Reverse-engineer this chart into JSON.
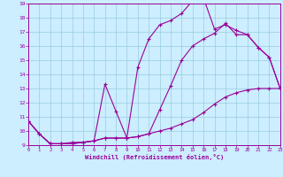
{
  "xlabel": "Windchill (Refroidissement éolien,°C)",
  "background_color": "#cceeff",
  "grid_color": "#99ccdd",
  "line_color": "#990099",
  "xlim": [
    0,
    23
  ],
  "ylim": [
    9,
    19
  ],
  "xtick_vals": [
    0,
    1,
    2,
    3,
    4,
    5,
    6,
    7,
    8,
    9,
    10,
    11,
    12,
    13,
    14,
    15,
    16,
    17,
    18,
    19,
    20,
    21,
    22,
    23
  ],
  "ytick_vals": [
    9,
    10,
    11,
    12,
    13,
    14,
    15,
    16,
    17,
    18,
    19
  ],
  "curve1_x": [
    0,
    1,
    2,
    3,
    4,
    5,
    6,
    7,
    8,
    9,
    10,
    11,
    12,
    13,
    14,
    15,
    16,
    17,
    18,
    19,
    20,
    21,
    22,
    23
  ],
  "curve1_y": [
    10.7,
    9.8,
    9.1,
    9.1,
    9.1,
    9.2,
    9.3,
    9.5,
    9.5,
    9.5,
    9.6,
    9.8,
    10.0,
    10.2,
    10.5,
    10.8,
    11.3,
    11.9,
    12.4,
    12.7,
    12.9,
    13.0,
    13.0,
    13.0
  ],
  "curve2_x": [
    0,
    1,
    2,
    3,
    4,
    5,
    6,
    7,
    8,
    9,
    10,
    11,
    12,
    13,
    14,
    15,
    16,
    17,
    18,
    19,
    20,
    21,
    22,
    23
  ],
  "curve2_y": [
    10.7,
    9.8,
    9.1,
    9.1,
    9.2,
    9.2,
    9.3,
    13.3,
    11.4,
    9.5,
    9.6,
    9.8,
    11.5,
    13.2,
    15.0,
    16.0,
    16.5,
    16.9,
    17.6,
    16.8,
    16.8,
    15.9,
    15.2,
    13.0
  ],
  "curve3_x": [
    0,
    1,
    2,
    3,
    4,
    5,
    6,
    7,
    8,
    9,
    10,
    11,
    12,
    13,
    14,
    15,
    16,
    17,
    18,
    19,
    20,
    21,
    22,
    23
  ],
  "curve3_y": [
    10.7,
    9.8,
    9.1,
    9.1,
    9.1,
    9.2,
    9.3,
    9.5,
    9.5,
    9.5,
    14.5,
    16.5,
    17.5,
    17.8,
    18.3,
    19.2,
    19.4,
    17.2,
    17.5,
    17.1,
    16.8,
    15.9,
    15.2,
    13.0
  ]
}
